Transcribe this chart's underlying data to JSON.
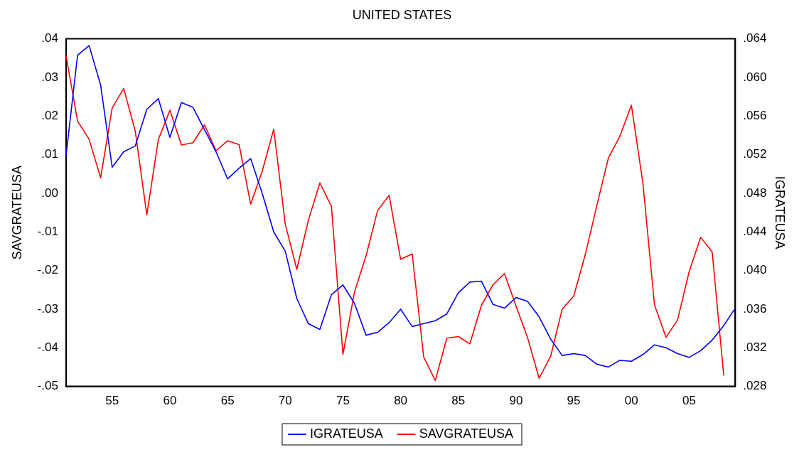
{
  "chart_data": {
    "type": "line",
    "title": "UNITED STATES",
    "ylabel": "SAVGRATEUSA",
    "y2label": "IGRATEUSA",
    "x": [
      1951,
      1952,
      1953,
      1954,
      1955,
      1956,
      1957,
      1958,
      1959,
      1960,
      1961,
      1962,
      1963,
      1964,
      1965,
      1966,
      1967,
      1968,
      1969,
      1970,
      1971,
      1972,
      1973,
      1974,
      1975,
      1976,
      1977,
      1978,
      1979,
      1980,
      1981,
      1982,
      1983,
      1984,
      1985,
      1986,
      1987,
      1988,
      1989,
      1990,
      1991,
      1992,
      1993,
      1994,
      1995,
      1996,
      1997,
      1998,
      1999,
      2000,
      2001,
      2002,
      2003,
      2004,
      2005,
      2006,
      2007,
      2008,
      2009
    ],
    "xlim": [
      1951,
      2009
    ],
    "xticks": [
      {
        "value": 1955,
        "label": "55"
      },
      {
        "value": 1960,
        "label": "60"
      },
      {
        "value": 1965,
        "label": "65"
      },
      {
        "value": 1970,
        "label": "70"
      },
      {
        "value": 1975,
        "label": "75"
      },
      {
        "value": 1980,
        "label": "80"
      },
      {
        "value": 1985,
        "label": "85"
      },
      {
        "value": 1990,
        "label": "90"
      },
      {
        "value": 1995,
        "label": "95"
      },
      {
        "value": 2000,
        "label": "00"
      },
      {
        "value": 2005,
        "label": "05"
      }
    ],
    "ylim": [
      -0.05,
      0.04
    ],
    "yticks": [
      {
        "value": -0.05,
        "label": "-.05"
      },
      {
        "value": -0.04,
        "label": "-.04"
      },
      {
        "value": -0.03,
        "label": "-.03"
      },
      {
        "value": -0.02,
        "label": "-.02"
      },
      {
        "value": -0.01,
        "label": "-.01"
      },
      {
        "value": 0,
        "label": ".00"
      },
      {
        "value": 0.01,
        "label": ".01"
      },
      {
        "value": 0.02,
        "label": ".02"
      },
      {
        "value": 0.03,
        "label": ".03"
      },
      {
        "value": 0.04,
        "label": ".04"
      }
    ],
    "y2lim": [
      0.028,
      0.064
    ],
    "y2ticks": [
      {
        "value": 0.028,
        "label": ".028"
      },
      {
        "value": 0.032,
        "label": ".032"
      },
      {
        "value": 0.036,
        "label": ".036"
      },
      {
        "value": 0.04,
        "label": ".040"
      },
      {
        "value": 0.044,
        "label": ".044"
      },
      {
        "value": 0.048,
        "label": ".048"
      },
      {
        "value": 0.052,
        "label": ".052"
      },
      {
        "value": 0.056,
        "label": ".056"
      },
      {
        "value": 0.06,
        "label": ".060"
      },
      {
        "value": 0.064,
        "label": ".064"
      }
    ],
    "series": [
      {
        "name": "IGRATEUSA",
        "color": "#0000ff",
        "axis": "y2",
        "values": [
          0.0519,
          0.0623,
          0.0633,
          0.0592,
          0.0507,
          0.0523,
          0.0529,
          0.0567,
          0.0578,
          0.0538,
          0.0574,
          0.0569,
          0.0546,
          0.0523,
          0.0495,
          0.0506,
          0.0516,
          0.048,
          0.044,
          0.042,
          0.0371,
          0.0345,
          0.0339,
          0.0375,
          0.0385,
          0.0366,
          0.0333,
          0.0336,
          0.0346,
          0.036,
          0.0342,
          0.0345,
          0.0348,
          0.0355,
          0.0377,
          0.0388,
          0.0389,
          0.0365,
          0.0361,
          0.0372,
          0.0368,
          0.0352,
          0.0329,
          0.0312,
          0.0314,
          0.0312,
          0.0303,
          0.03,
          0.0307,
          0.0306,
          0.0313,
          0.0323,
          0.032,
          0.0314,
          0.031,
          0.0317,
          0.0328,
          0.0343,
          0.0361
        ]
      },
      {
        "name": "SAVGRATEUSA",
        "color": "#ff0000",
        "values": [
          0.0357,
          0.0187,
          0.014,
          0.004,
          0.0221,
          0.0271,
          0.0161,
          -0.0056,
          0.0139,
          0.0215,
          0.0125,
          0.0131,
          0.0177,
          0.011,
          0.0136,
          0.0126,
          -0.0028,
          0.0057,
          0.0166,
          -0.008,
          -0.0197,
          -0.007,
          0.0027,
          -0.0034,
          -0.0417,
          -0.0256,
          -0.0162,
          -0.0045,
          -0.0005,
          -0.0171,
          -0.0157,
          -0.0424,
          -0.0485,
          -0.0375,
          -0.0371,
          -0.039,
          -0.029,
          -0.0237,
          -0.0208,
          -0.0292,
          -0.0374,
          -0.0479,
          -0.0422,
          -0.03,
          -0.0266,
          -0.0159,
          -0.0032,
          0.0091,
          0.0148,
          0.0228,
          0.0025,
          -0.0289,
          -0.0373,
          -0.0328,
          -0.0203,
          -0.0114,
          -0.0152,
          -0.0472,
          null
        ]
      }
    ],
    "legend": "bottom",
    "grid": false,
    "marker": "none",
    "line_style": "solid"
  }
}
